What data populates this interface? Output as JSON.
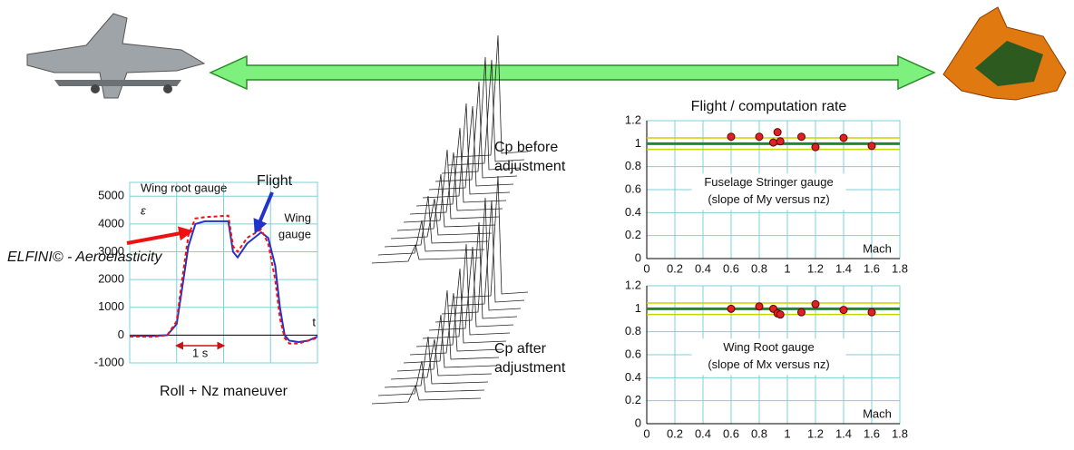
{
  "chart_data": [
    {
      "type": "line",
      "title": "Wing root gauge",
      "symbol": "ε",
      "gauge_label": [
        "Wing",
        "gauge"
      ],
      "time_label": "t",
      "duration_label": "1 s",
      "caption": "Roll + Nz maneuver",
      "x": [
        0,
        0.5,
        0.8,
        1.0,
        1.1,
        1.25,
        1.4,
        1.6,
        2.1,
        2.2,
        2.3,
        2.5,
        2.8,
        2.95,
        3.1,
        3.2,
        3.3,
        3.4,
        3.6,
        3.8,
        4.0
      ],
      "xlim": [
        0,
        4
      ],
      "series": [
        {
          "name": "Flight",
          "color": "#2233cc",
          "dash": false,
          "values": [
            -20,
            -30,
            0,
            400,
            1500,
            3200,
            4000,
            4100,
            4100,
            3000,
            2800,
            3300,
            3700,
            3500,
            2500,
            1000,
            0,
            -200,
            -250,
            -200,
            -50
          ]
        },
        {
          "name": "ELFINI© - Aeroelasticity",
          "color": "#ee1111",
          "dash": true,
          "values": [
            -50,
            -60,
            0,
            500,
            1800,
            3600,
            4200,
            4250,
            4300,
            3200,
            3000,
            3500,
            3800,
            3300,
            2000,
            600,
            -100,
            -300,
            -300,
            -200,
            -100
          ]
        }
      ],
      "ylim": [
        -1000,
        5500
      ],
      "yticks": [
        -1000,
        0,
        1000,
        2000,
        3000,
        4000,
        5000
      ],
      "grid": true
    },
    {
      "type": "scatter",
      "title": "Flight / computation rate",
      "note": [
        "Fuselage Stringer gauge",
        "(slope of My versus nz)"
      ],
      "xlabel": "Mach",
      "x": [
        0.6,
        0.8,
        0.9,
        0.93,
        0.95,
        1.1,
        1.2,
        1.4,
        1.6
      ],
      "values": [
        1.06,
        1.06,
        1.01,
        1.1,
        1.02,
        1.06,
        0.97,
        1.05,
        0.98
      ],
      "color": "#dd2222",
      "reference_lines": [
        {
          "value": 1,
          "color": "#1f8a2a"
        },
        {
          "value": 1.05,
          "color": "#c8d400"
        },
        {
          "value": 0.95,
          "color": "#c8d400"
        }
      ],
      "xlim": [
        0,
        1.8
      ],
      "xticks": [
        0,
        0.2,
        0.4,
        0.6,
        0.8,
        1,
        1.2,
        1.4,
        1.6,
        1.8
      ],
      "ylim": [
        0,
        1.2
      ],
      "yticks": [
        0,
        0.2,
        0.4,
        0.6,
        0.8,
        1,
        1.2
      ],
      "grid": true
    },
    {
      "type": "scatter",
      "note": [
        "Wing Root gauge",
        "(slope of Mx versus nz)"
      ],
      "xlabel": "Mach",
      "x": [
        0.6,
        0.8,
        0.9,
        0.93,
        0.95,
        1.1,
        1.2,
        1.4,
        1.6
      ],
      "values": [
        1.0,
        1.02,
        1.0,
        0.96,
        0.95,
        0.97,
        1.04,
        0.99,
        0.97
      ],
      "color": "#dd2222",
      "reference_lines": [
        {
          "value": 1,
          "color": "#1f8a2a"
        },
        {
          "value": 1.05,
          "color": "#c8d400"
        },
        {
          "value": 0.95,
          "color": "#c8d400"
        }
      ],
      "xlim": [
        0,
        1.8
      ],
      "xticks": [
        0,
        0.2,
        0.4,
        0.6,
        0.8,
        1,
        1.2,
        1.4,
        1.6,
        1.8
      ],
      "ylim": [
        0,
        1.2
      ],
      "yticks": [
        0,
        0.2,
        0.4,
        0.6,
        0.8,
        1,
        1.2
      ],
      "grid": true
    }
  ],
  "cp_before": [
    "Cp before",
    "adjustment"
  ],
  "cp_after": [
    "Cp after",
    "adjustment"
  ]
}
